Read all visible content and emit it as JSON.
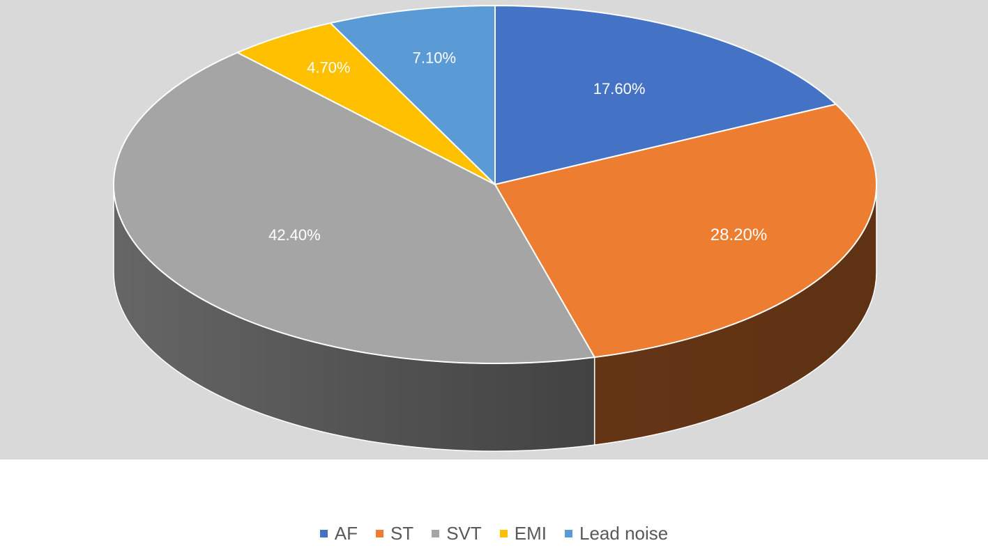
{
  "chart_data": {
    "type": "pie",
    "style": "3d",
    "categories": [
      "AF",
      "ST",
      "SVT",
      "EMI",
      "Lead noise"
    ],
    "values": [
      17.6,
      28.2,
      42.4,
      4.7,
      7.1
    ],
    "data_labels": [
      "17.60%",
      "28.20%",
      "42.40%",
      "4.70%",
      "7.10%"
    ],
    "colors": [
      "#4472C4",
      "#ED7D31",
      "#A5A5A5",
      "#FFC000",
      "#5B9BD5"
    ],
    "legend_position": "bottom",
    "plot_background": "#D9D9D9",
    "legend": [
      {
        "label": "AF",
        "color": "#4472C4"
      },
      {
        "label": "ST",
        "color": "#ED7D31"
      },
      {
        "label": "SVT",
        "color": "#A5A5A5"
      },
      {
        "label": "EMI",
        "color": "#FFC000"
      },
      {
        "label": "Lead noise",
        "color": "#5B9BD5"
      }
    ]
  }
}
